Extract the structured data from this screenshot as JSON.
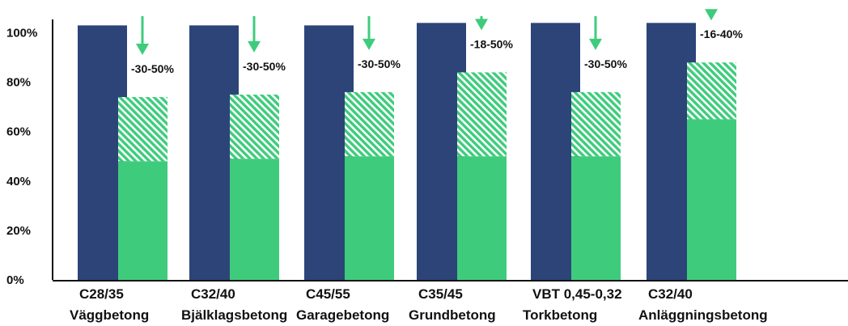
{
  "chart_data": {
    "type": "bar",
    "title": "",
    "xlabel": "",
    "ylabel": "",
    "ylim": [
      0,
      110
    ],
    "y_ticks": [
      "0%",
      "20%",
      "40%",
      "60%",
      "80%",
      "100%"
    ],
    "y_tick_values": [
      0,
      20,
      40,
      60,
      80,
      100
    ],
    "grid": false,
    "legend": "none",
    "categories": [
      {
        "code": "C28/35",
        "name": "Väggbetong"
      },
      {
        "code": "C32/40",
        "name": "Bjälklagsbetong"
      },
      {
        "code": "C45/55",
        "name": "Garagebetong"
      },
      {
        "code": "C35/45",
        "name": "Grundbetong"
      },
      {
        "code": "VBT 0,45-0,32",
        "name": "Torkbetong"
      },
      {
        "code": "C32/40",
        "name": "Anläggningsbetong"
      }
    ],
    "series": [
      {
        "values": [
          103,
          103,
          103,
          104,
          104,
          104
        ],
        "color": "#2c4478",
        "pattern": "solid"
      },
      {
        "values": [
          48,
          49,
          50,
          50,
          50,
          65
        ],
        "color": "#3ecc7c",
        "pattern": "solid"
      },
      {
        "values": [
          74,
          75,
          76,
          84,
          76,
          88
        ],
        "color": "#3ecc7c",
        "pattern": "hatched"
      }
    ],
    "reductions": [
      "-30-50%",
      "-30-50%",
      "-30-50%",
      "-18-50%",
      "-30-50%",
      "-16-40%"
    ],
    "arrow_color": "#3ecc7c"
  }
}
